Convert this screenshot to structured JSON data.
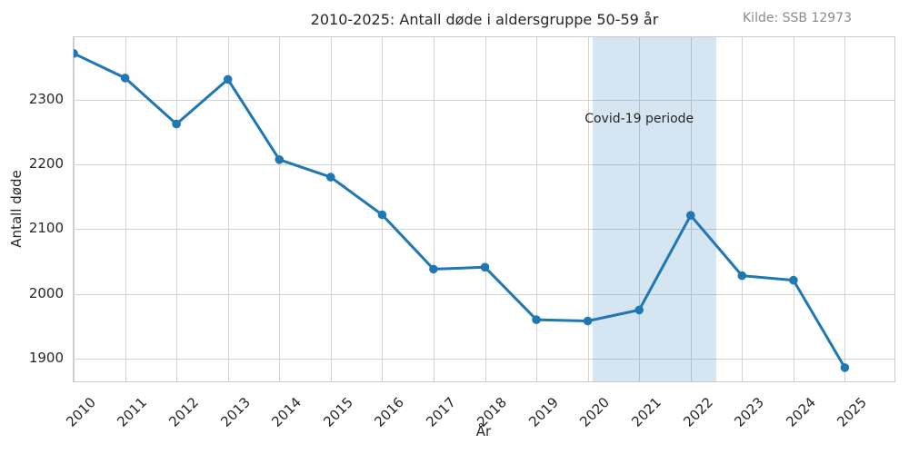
{
  "source_note": "Kilde: SSB 12973",
  "chart_data": {
    "type": "line",
    "title": "2010-2025: Antall døde i aldersgruppe 50-59 år",
    "xlabel": "År",
    "ylabel": "Antall døde",
    "x": [
      2010,
      2011,
      2012,
      2013,
      2014,
      2015,
      2016,
      2017,
      2018,
      2019,
      2020,
      2021,
      2022,
      2023,
      2024,
      2025
    ],
    "series": [
      {
        "name": "Antall døde",
        "color": "#1f77b4",
        "values": [
          2371,
          2333,
          2262,
          2331,
          2207,
          2180,
          2122,
          2038,
          2041,
          1960,
          1958,
          1975,
          2121,
          2028,
          2021,
          1886
        ]
      }
    ],
    "xlim": [
      2010,
      2026
    ],
    "ylim": [
      1862,
      2396
    ],
    "xticks": [
      2010,
      2011,
      2012,
      2013,
      2014,
      2015,
      2016,
      2017,
      2018,
      2019,
      2020,
      2021,
      2022,
      2023,
      2024,
      2025
    ],
    "yticks": [
      1900,
      2000,
      2100,
      2200,
      2300
    ],
    "grid": true,
    "legend": "none",
    "marker": "circle",
    "line_width": 3,
    "grid_color": "#d2d2d2",
    "shaded_regions": [
      {
        "x_start": 2020.1,
        "x_end": 2022.5,
        "color": "#1f77b4",
        "opacity": 0.19
      }
    ],
    "annotations": [
      {
        "text": "Covid-19 periode",
        "x": 2021,
        "y": 2270
      }
    ]
  }
}
